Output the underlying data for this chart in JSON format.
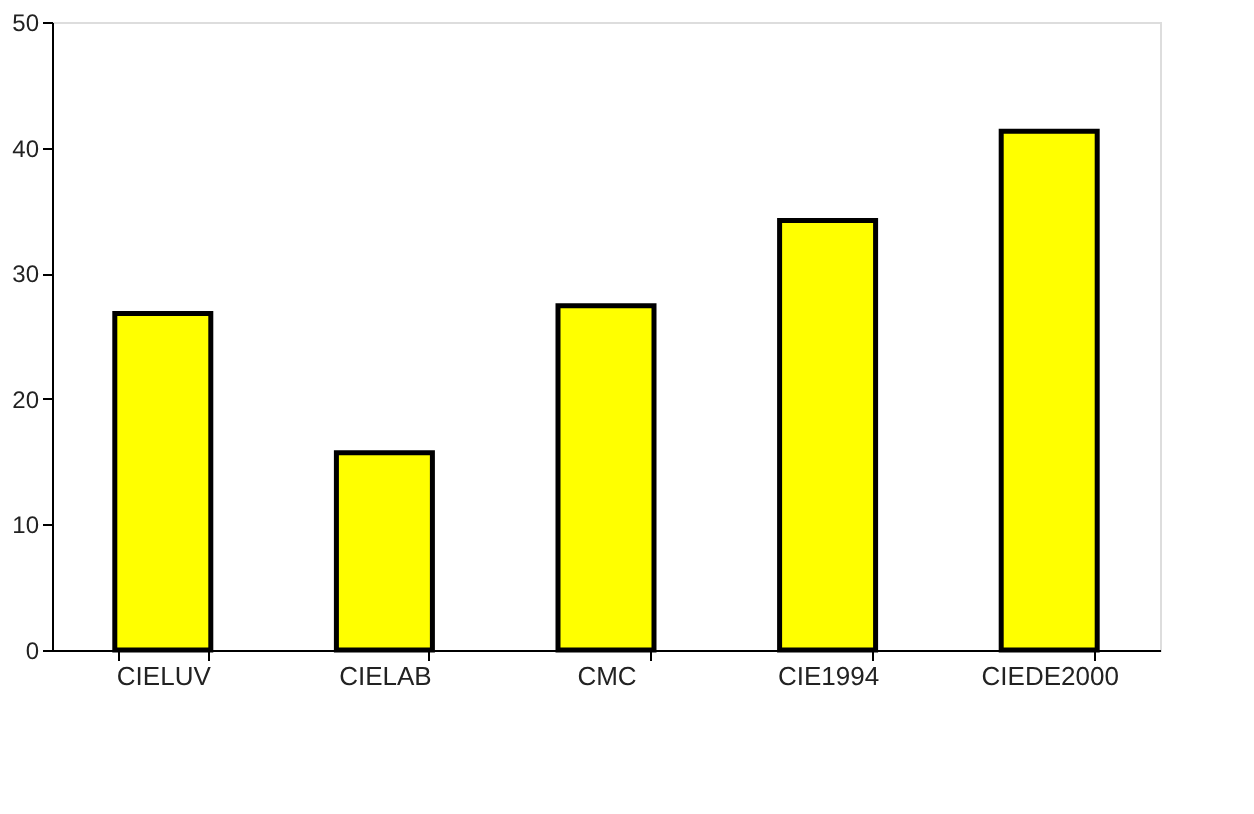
{
  "chart_data": {
    "type": "bar",
    "categories": [
      "CIELUV",
      "CIELAB",
      "CMC",
      "CIE1994",
      "CIEDE2000"
    ],
    "values": [
      26.8,
      15.7,
      27.4,
      34.2,
      41.3
    ],
    "color": "#ffff00",
    "ylim": [
      0,
      50
    ],
    "yticks": [
      0,
      10,
      20,
      30,
      40,
      50
    ],
    "grid": false
  }
}
